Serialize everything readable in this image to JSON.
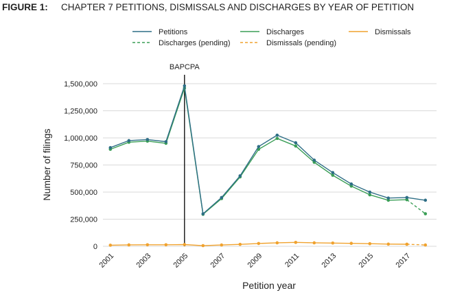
{
  "figure": {
    "label": "FIGURE 1:",
    "title": "CHAPTER 7 PETITIONS, DISMISSALS AND DISCHARGES BY YEAR OF PETITION"
  },
  "colors": {
    "petitions": "#2e6e86",
    "discharges": "#3a9e56",
    "dismissals": "#f0a22e",
    "gridline": "#d9d9d9",
    "annotation": "#111111"
  },
  "chart_data": {
    "type": "line",
    "xlabel": "Petition year",
    "ylabel": "Number of filings",
    "xlim": [
      2000.6,
      2018.6
    ],
    "ylim": [
      0,
      1500000
    ],
    "x_ticks": [
      2001,
      2003,
      2005,
      2007,
      2009,
      2011,
      2013,
      2015,
      2017
    ],
    "y_ticks": [
      0,
      250000,
      500000,
      750000,
      1000000,
      1250000,
      1500000
    ],
    "y_tick_labels": [
      "0",
      "250,000",
      "500,000",
      "750,000",
      "1,000,000",
      "1,250,000",
      "1,500,000"
    ],
    "grid": "horizontal",
    "legend_position": "top",
    "legend": [
      {
        "key": "petitions",
        "label": "Petitions",
        "style": "solid"
      },
      {
        "key": "discharges",
        "label": "Discharges",
        "style": "solid"
      },
      {
        "key": "dismissals",
        "label": "Dismissals",
        "style": "solid"
      },
      {
        "key": "discharges_pending",
        "label": "Discharges (pending)",
        "style": "dashed"
      },
      {
        "key": "dismissals_pending",
        "label": "Dismissals (pending)",
        "style": "dashed"
      }
    ],
    "annotation": {
      "x": 2005,
      "label": "BAPCPA"
    },
    "series": [
      {
        "name": "Petitions",
        "key": "petitions",
        "style": "solid",
        "x": [
          2001,
          2002,
          2003,
          2004,
          2005,
          2006,
          2007,
          2008,
          2009,
          2010,
          2011,
          2012,
          2013,
          2014,
          2015,
          2016,
          2017,
          2018
        ],
        "values": [
          910000,
          975000,
          985000,
          965000,
          1480000,
          300000,
          450000,
          650000,
          920000,
          1025000,
          955000,
          795000,
          680000,
          575000,
          500000,
          445000,
          450000,
          425000
        ]
      },
      {
        "name": "Discharges",
        "key": "discharges",
        "style": "solid",
        "x": [
          2001,
          2002,
          2003,
          2004,
          2005,
          2006,
          2007,
          2008,
          2009,
          2010,
          2011,
          2012,
          2013,
          2014,
          2015,
          2016,
          2017
        ],
        "values": [
          895000,
          960000,
          970000,
          950000,
          1460000,
          295000,
          440000,
          640000,
          895000,
          995000,
          925000,
          775000,
          655000,
          555000,
          475000,
          425000,
          430000
        ]
      },
      {
        "name": "Discharges (pending)",
        "key": "discharges_pending",
        "style": "dashed",
        "x": [
          2017,
          2018
        ],
        "values": [
          430000,
          300000
        ]
      },
      {
        "name": "Dismissals",
        "key": "dismissals",
        "style": "solid",
        "x": [
          2001,
          2002,
          2003,
          2004,
          2005,
          2006,
          2007,
          2008,
          2009,
          2010,
          2011,
          2012,
          2013,
          2014,
          2015,
          2016,
          2017
        ],
        "values": [
          10000,
          13000,
          14000,
          14000,
          16000,
          6000,
          12000,
          18000,
          26000,
          32000,
          36000,
          32000,
          30000,
          27000,
          24000,
          20000,
          19000
        ]
      },
      {
        "name": "Dismissals (pending)",
        "key": "dismissals_pending",
        "style": "dashed",
        "x": [
          2017,
          2018
        ],
        "values": [
          19000,
          12000
        ]
      }
    ]
  }
}
